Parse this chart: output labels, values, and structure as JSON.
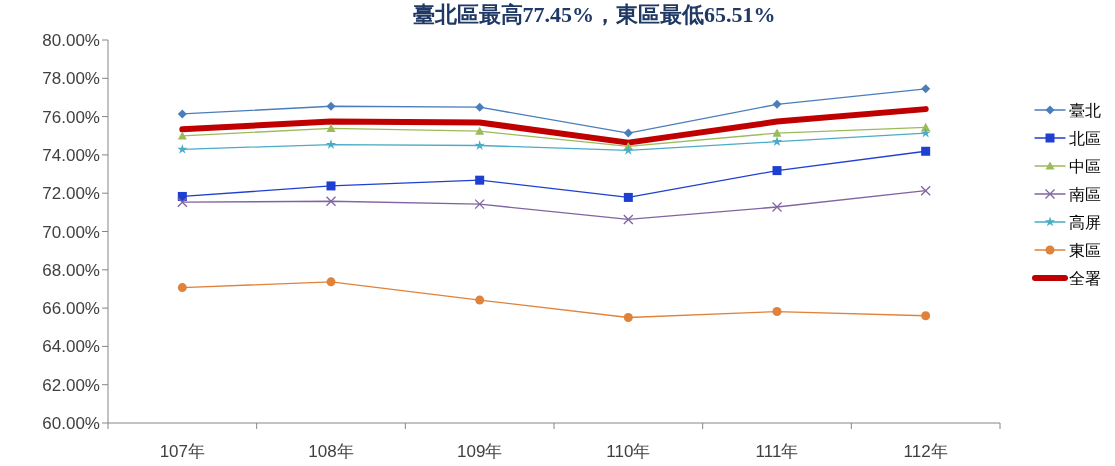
{
  "chart_data": {
    "type": "line",
    "title": "臺北區最高77.45%，東區最低65.51%",
    "categories": [
      "107年",
      "108年",
      "109年",
      "110年",
      "111年",
      "112年"
    ],
    "series": [
      {
        "name": "臺北",
        "color": "#4a7ebb",
        "marker": "diamond",
        "values": [
          76.14,
          76.54,
          76.49,
          75.14,
          76.64,
          77.45
        ]
      },
      {
        "name": "北區",
        "color": "#1f3fd0",
        "marker": "square",
        "values": [
          71.83,
          72.38,
          72.68,
          71.78,
          73.18,
          74.19
        ]
      },
      {
        "name": "中區",
        "color": "#9bbb59",
        "marker": "triangle",
        "values": [
          74.99,
          75.39,
          75.24,
          74.44,
          75.14,
          75.44
        ]
      },
      {
        "name": "南區",
        "color": "#8064a2",
        "marker": "cross",
        "values": [
          71.53,
          71.58,
          71.43,
          70.63,
          71.28,
          72.13
        ]
      },
      {
        "name": "高屏",
        "color": "#4bacc6",
        "marker": "star",
        "values": [
          74.29,
          74.54,
          74.49,
          74.24,
          74.69,
          75.14
        ]
      },
      {
        "name": "東區",
        "color": "#e0823a",
        "marker": "circle",
        "values": [
          67.07,
          67.37,
          66.42,
          65.51,
          65.82,
          65.6
        ]
      },
      {
        "name": "全署",
        "color": "#c00000",
        "marker": "none",
        "values": [
          75.34,
          75.74,
          75.69,
          74.64,
          75.74,
          76.39
        ]
      }
    ],
    "ylim": [
      60,
      80
    ],
    "yticks": [
      {
        "value": 60,
        "label": "60.00%"
      },
      {
        "value": 62,
        "label": "62.00%"
      },
      {
        "value": 64,
        "label": "64.00%"
      },
      {
        "value": 66,
        "label": "66.00%"
      },
      {
        "value": 68,
        "label": "68.00%"
      },
      {
        "value": 70,
        "label": "70.00%"
      },
      {
        "value": 72,
        "label": "72.00%"
      },
      {
        "value": 74,
        "label": "74.00%"
      },
      {
        "value": 76,
        "label": "76.00%"
      },
      {
        "value": 78,
        "label": "78.00%"
      },
      {
        "value": 80,
        "label": "80.00%"
      }
    ],
    "grid": false,
    "legend": "right"
  }
}
